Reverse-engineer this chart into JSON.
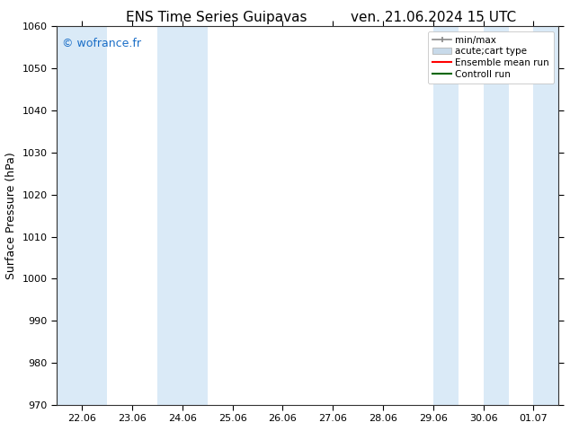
{
  "title_left": "ENS Time Series Guipavas",
  "title_right": "ven. 21.06.2024 15 UTC",
  "ylabel": "Surface Pressure (hPa)",
  "ylim": [
    970,
    1060
  ],
  "yticks": [
    970,
    980,
    990,
    1000,
    1010,
    1020,
    1030,
    1040,
    1050,
    1060
  ],
  "xtick_labels": [
    "22.06",
    "23.06",
    "24.06",
    "25.06",
    "26.06",
    "27.06",
    "28.06",
    "29.06",
    "30.06",
    "01.07"
  ],
  "xtick_positions": [
    0,
    1,
    2,
    3,
    4,
    5,
    6,
    7,
    8,
    9
  ],
  "xlim": [
    -0.5,
    9.5
  ],
  "shaded_bands": [
    {
      "x_start": -0.5,
      "x_end": 0.5
    },
    {
      "x_start": 1.5,
      "x_end": 2.5
    },
    {
      "x_start": 7.0,
      "x_end": 7.5
    },
    {
      "x_start": 8.0,
      "x_end": 8.5
    },
    {
      "x_start": 9.0,
      "x_end": 9.5
    }
  ],
  "shaded_band_color": "#daeaf7",
  "watermark": "© wofrance.fr",
  "watermark_color": "#1a6ec7",
  "legend_entries": [
    {
      "label": "min/max",
      "type": "errorbar"
    },
    {
      "label": "acute;cart type",
      "type": "band"
    },
    {
      "label": "Ensemble mean run",
      "type": "line_red"
    },
    {
      "label": "Controll run",
      "type": "line_green"
    }
  ],
  "bg_color": "#ffffff",
  "plot_bg_color": "#ffffff",
  "title_fontsize": 11,
  "tick_fontsize": 8,
  "ylabel_fontsize": 9,
  "watermark_fontsize": 9
}
